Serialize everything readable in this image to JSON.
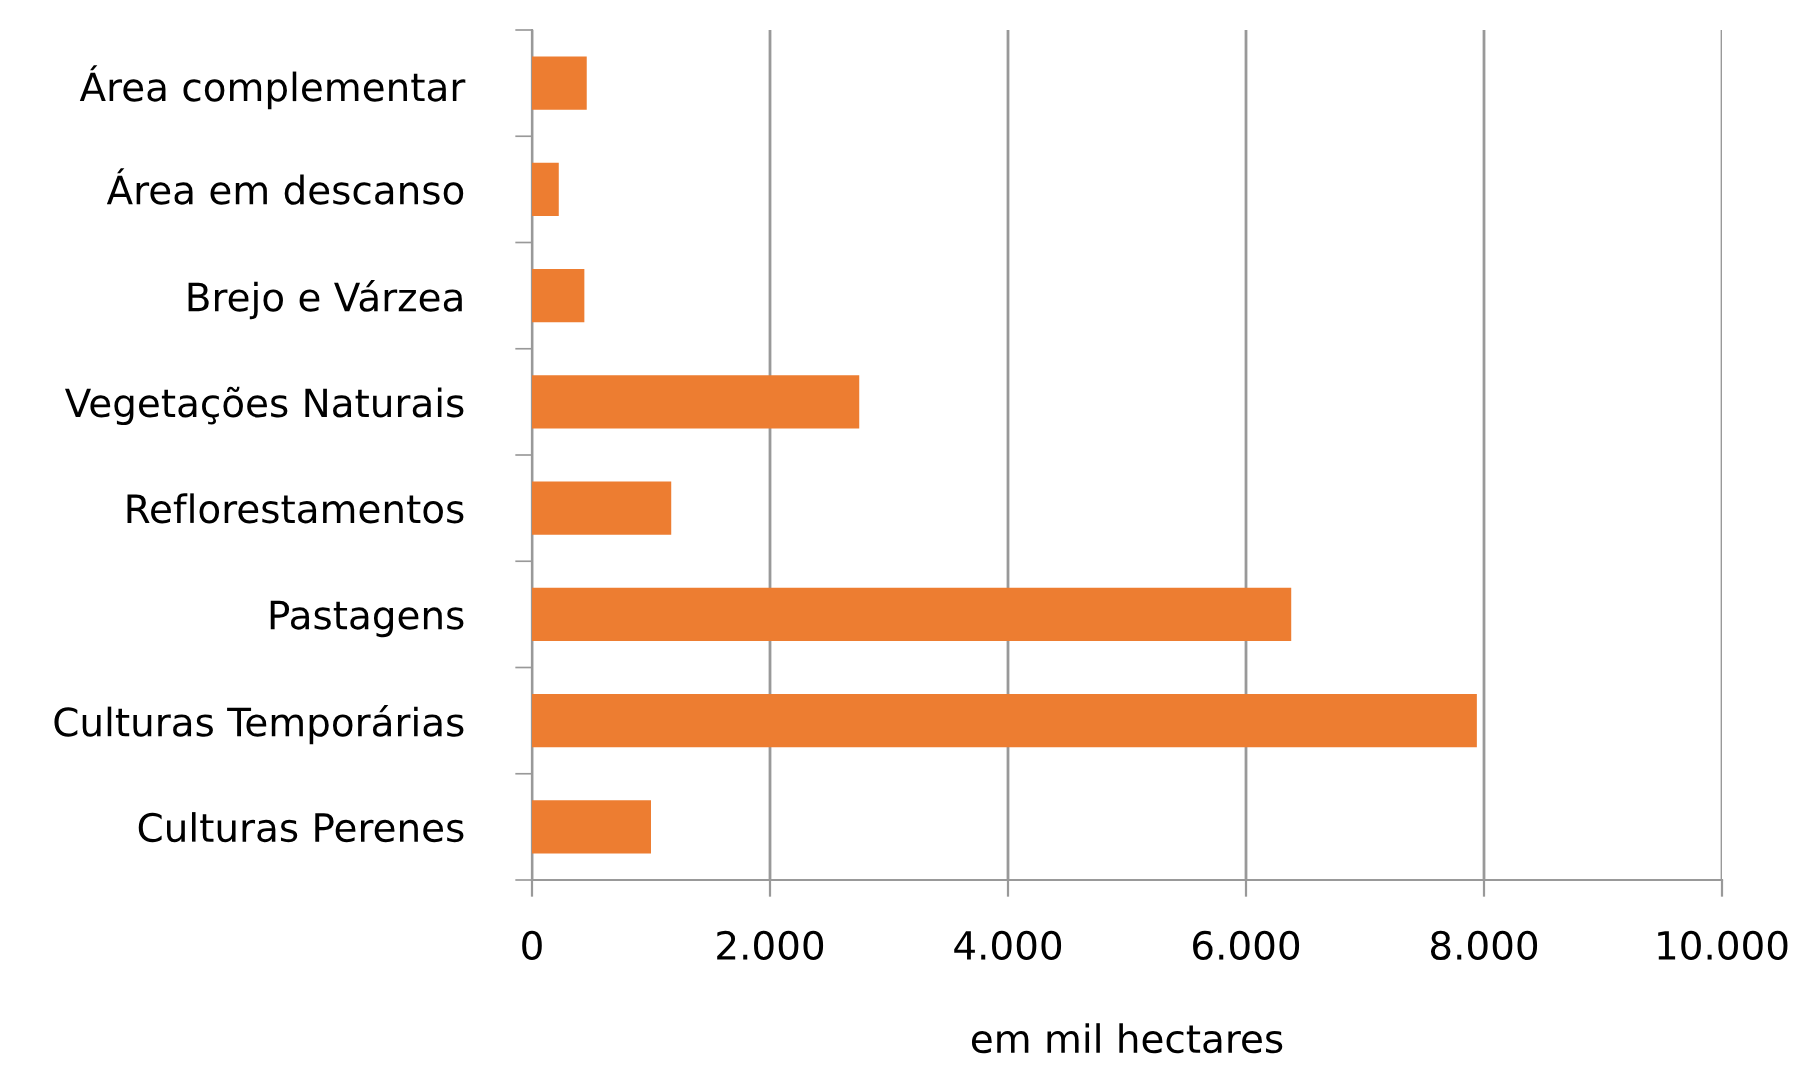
{
  "chart_data": {
    "type": "bar",
    "orientation": "horizontal",
    "xlabel": "em mil hectares",
    "categories": [
      "Área complementar",
      "Área em descanso",
      "Brejo e Várzea",
      "Vegetações Naturais",
      "Reflorestamentos",
      "Pastagens",
      "Culturas Temporárias",
      "Culturas Perenes"
    ],
    "values": [
      460,
      225,
      440,
      2750,
      1170,
      6380,
      7940,
      1000
    ],
    "color": "#ed7d31",
    "xlim": [
      0,
      10000
    ],
    "xticks": [
      {
        "value": 0,
        "label": "0"
      },
      {
        "value": 2000,
        "label": "2.000"
      },
      {
        "value": 4000,
        "label": "4.000"
      },
      {
        "value": 6000,
        "label": "6.000"
      },
      {
        "value": 8000,
        "label": "8.000"
      },
      {
        "value": 10000,
        "label": "10.000"
      }
    ],
    "grid": "x"
  }
}
